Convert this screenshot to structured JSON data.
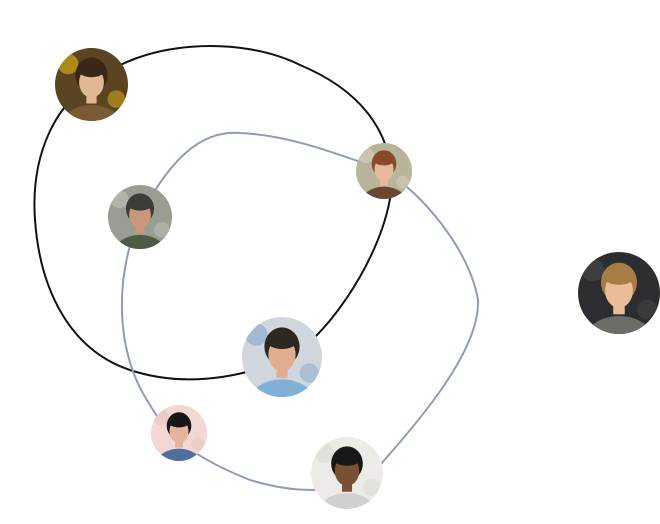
{
  "colors": {
    "background": "#ffffff",
    "loop_primary": "#111111",
    "loop_secondary": "#8e9cb8"
  },
  "loops": [
    {
      "name": "primary",
      "color_key": "loop_primary"
    },
    {
      "name": "secondary",
      "color_key": "loop_secondary"
    }
  ],
  "avatars": [
    {
      "name": "avatar-woman-sunflowers",
      "icon": "person-photo-icon",
      "palette": {
        "bg": "#5a4422",
        "accent": "#f2c314",
        "skin": "#e0b894",
        "hair": "#3b2718",
        "clothes": "#7a5a33"
      }
    },
    {
      "name": "avatar-woman-auburn-hair",
      "icon": "person-photo-icon",
      "palette": {
        "bg": "#b7b49a",
        "accent": "#d8d6c2",
        "skin": "#e7b99c",
        "hair": "#8a4a28",
        "clothes": "#6b4632"
      }
    },
    {
      "name": "avatar-man-cap",
      "icon": "person-photo-icon",
      "palette": {
        "bg": "#9a9d92",
        "accent": "#c7c7bd",
        "skin": "#c9987a",
        "hair": "#3d3c38",
        "clothes": "#4f5a46"
      }
    },
    {
      "name": "avatar-man-blonde",
      "icon": "person-photo-icon",
      "palette": {
        "bg": "#2b2d30",
        "accent": "#4a4c50",
        "skin": "#e8bd98",
        "hair": "#a57d45",
        "clothes": "#6a6e66"
      }
    },
    {
      "name": "avatar-man-center",
      "icon": "person-photo-icon",
      "palette": {
        "bg": "#cfd6de",
        "accent": "#7fa1c9",
        "skin": "#e0ae8f",
        "hair": "#2e2620",
        "clothes": "#7fb0d6"
      }
    },
    {
      "name": "avatar-woman-dark-hair",
      "icon": "person-photo-icon",
      "palette": {
        "bg": "#f2d7d2",
        "accent": "#e7c2bb",
        "skin": "#e4b598",
        "hair": "#181616",
        "clothes": "#4e6fa0"
      }
    },
    {
      "name": "avatar-man-glasses",
      "icon": "person-photo-icon",
      "palette": {
        "bg": "#ecebe7",
        "accent": "#d9d8d2",
        "skin": "#7a5035",
        "hair": "#1b1714",
        "clothes": "#cfd1d0"
      }
    }
  ]
}
